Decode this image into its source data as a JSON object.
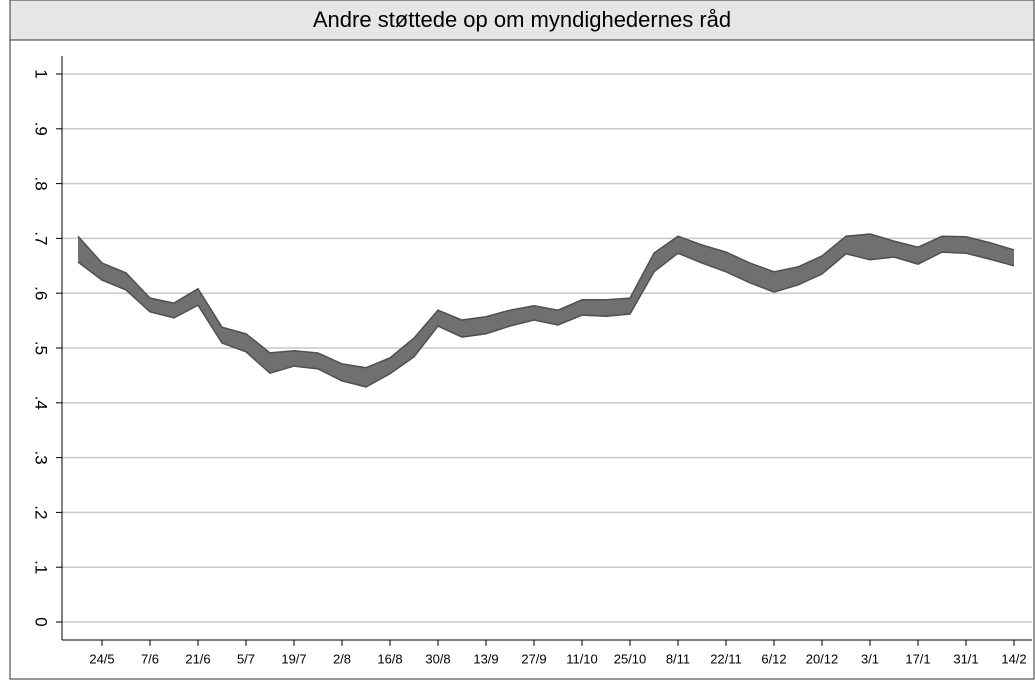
{
  "chart_data": {
    "type": "band",
    "title": "Andre støttede op om myndighedernes råd",
    "categories": [
      null,
      "24/5",
      null,
      "7/6",
      null,
      "21/6",
      null,
      "5/7",
      null,
      "19/7",
      null,
      "2/8",
      null,
      "16/8",
      null,
      "30/8",
      null,
      "13/9",
      null,
      "27/9",
      null,
      "11/10",
      null,
      "25/10",
      null,
      "8/11",
      null,
      "22/11",
      null,
      "6/12",
      null,
      "20/12",
      null,
      "3/1",
      null,
      "17/1",
      null,
      "31/1",
      null,
      "14/2"
    ],
    "upper": [
      0.704,
      0.655,
      0.637,
      0.591,
      0.582,
      0.608,
      0.538,
      0.526,
      0.491,
      0.495,
      0.491,
      0.471,
      0.464,
      0.482,
      0.518,
      0.569,
      0.551,
      0.557,
      0.569,
      0.577,
      0.569,
      0.588,
      0.588,
      0.591,
      0.673,
      0.704,
      0.688,
      0.675,
      0.655,
      0.639,
      0.648,
      0.668,
      0.704,
      0.708,
      0.695,
      0.684,
      0.704,
      0.703,
      0.692,
      0.679
    ],
    "lower": [
      0.657,
      0.624,
      0.606,
      0.566,
      0.555,
      0.578,
      0.509,
      0.493,
      0.454,
      0.467,
      0.462,
      0.44,
      0.429,
      0.453,
      0.484,
      0.54,
      0.52,
      0.526,
      0.54,
      0.551,
      0.542,
      0.56,
      0.558,
      0.562,
      0.639,
      0.673,
      0.655,
      0.639,
      0.619,
      0.602,
      0.615,
      0.635,
      0.672,
      0.661,
      0.666,
      0.653,
      0.675,
      0.673,
      0.662,
      0.65
    ],
    "color": "#707070",
    "edge_color": "#505050",
    "ylim": [
      0,
      1
    ],
    "yticks": [
      0,
      {
        "value": 0.1,
        "label": ".1"
      },
      {
        "value": 0.2,
        "label": ".2"
      },
      {
        "value": 0.3,
        "label": ".3"
      },
      {
        "value": 0.4,
        "label": ".4"
      },
      {
        "value": 0.5,
        "label": ".5"
      },
      {
        "value": 0.6,
        "label": ".6"
      },
      {
        "value": 0.7,
        "label": ".7"
      },
      {
        "value": 0.8,
        "label": ".8"
      },
      {
        "value": 0.9,
        "label": ".9"
      },
      1
    ],
    "grid": true
  }
}
